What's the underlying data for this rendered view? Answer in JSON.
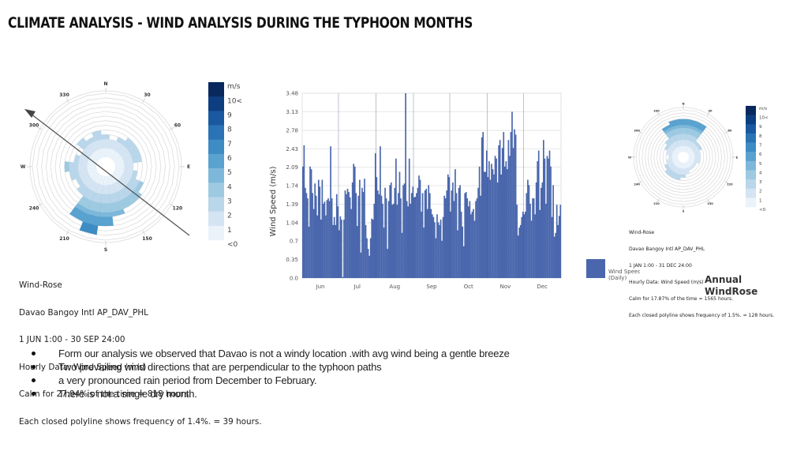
{
  "slide": {
    "title": "CLIMATE ANALYSIS - WIND ANALYSIS DURING  THE TYPHOON MONTHS"
  },
  "colors": {
    "bar": "#4a67ad",
    "rose_scale": [
      "#eaf2fa",
      "#d4e4f2",
      "#b9d6ea",
      "#9ecae1",
      "#7db8da",
      "#5aa2cf",
      "#3d8cc3",
      "#2a73b5",
      "#1a58a0",
      "#0d3f80",
      "#08285e"
    ]
  },
  "windrose_typhoon": {
    "compass_labels": {
      "N": "N",
      "E": "E",
      "S": "S",
      "W": "W"
    },
    "degree_labels": [
      "30",
      "60",
      "120",
      "150",
      "210",
      "240",
      "300",
      "330"
    ],
    "legend_unit": "m/s",
    "legend_labels": [
      "10<",
      "9",
      "8",
      "7",
      "6",
      "5",
      "4",
      "3",
      "2",
      "1",
      "<0"
    ],
    "sector_frequency_rings": [
      5,
      4,
      5,
      6,
      6,
      6,
      4,
      5,
      7,
      8,
      8,
      9,
      11,
      13,
      11,
      6,
      5,
      6,
      7,
      5,
      4,
      6,
      5,
      6
    ],
    "info_lines": [
      "Wind-Rose",
      "Davao Bangoy Intl AP_DAV_PHL",
      "1 JUN 1:00 - 30 SEP 24:00",
      "Hourly Data: Wind Speed (m/s)",
      "Calm for 27.94% of the time = 818 hours.",
      "Each closed polyline shows frequency of 1.4%. = 39 hours."
    ],
    "typhoon_path_arrow": "SE to NW"
  },
  "windrose_annual": {
    "title": "Annual\nWindRose",
    "compass_labels": {
      "N": "N",
      "E": "E",
      "S": "S",
      "W": "W"
    },
    "degree_labels": [
      "30",
      "60",
      "120",
      "150",
      "210",
      "240",
      "300",
      "330"
    ],
    "legend_unit": "m/s",
    "legend_labels": [
      "10<",
      "9",
      "8",
      "7",
      "6",
      "5",
      "4",
      "3",
      "2",
      "1",
      "<0"
    ],
    "sector_frequency_rings": [
      11,
      11,
      11,
      5,
      5,
      4,
      4,
      4,
      3,
      3,
      3,
      4,
      5,
      6,
      6,
      6,
      5,
      4,
      3,
      4,
      5,
      6,
      10,
      11
    ],
    "info_lines": [
      "Wind-Rose",
      "Davao Bangoy Intl AP_DAV_PHL",
      "1 JAN 1:00 - 31 DEC 24:00",
      "Hourly Data: Wind Speed (m/s)",
      "Calm for 17.87% of the time = 1565 hours.",
      "Each closed polyline shows frequency of 1.5%. = 128 hours."
    ]
  },
  "chart_data": {
    "type": "bar",
    "title": "",
    "xlabel": "",
    "ylabel": "Wind Speed (m/s)",
    "ylim": [
      0,
      3.48
    ],
    "yticks": [
      "0.0",
      "0.35",
      "0.7",
      "1.04",
      "1.39",
      "1.74",
      "2.09",
      "2.43",
      "2.78",
      "3.13",
      "3.48"
    ],
    "categories": [
      "Jun",
      "Jul",
      "Aug",
      "Sep",
      "Oct",
      "Nov",
      "Dec"
    ],
    "legend": {
      "label": "Wind Speed\n(Daily)",
      "placement": "right"
    },
    "grid": true,
    "series": [
      {
        "name": "Wind Speed (Daily)",
        "by_month": {
          "Jun": [
            2.1,
            2.5,
            1.7,
            1.6,
            1.5,
            0.97,
            2.1,
            2.05,
            1.6,
            1.3,
            1.78,
            1.55,
            1.18,
            1.85,
            1.72,
            1.1,
            1.85,
            1.4,
            1.44,
            1.18,
            1.47,
            1.5,
            1.45,
            2.48,
            1.5,
            1.0,
            1.15,
            1.0,
            1.58,
            1.35
          ],
          "Jul": [
            0.9,
            1.16,
            1.1,
            0.02,
            1.1,
            1.65,
            1.58,
            1.68,
            1.62,
            1.52,
            1.3,
            1.8,
            2.15,
            2.1,
            1.6,
            0.98,
            1.55,
            1.85,
            0.48,
            1.7,
            1.62,
            1.87,
            1.0,
            0.75,
            0.55,
            0.42,
            0.75,
            1.12,
            1.1,
            1.4,
            2.35
          ],
          "Aug": [
            1.9,
            1.65,
            1.58,
            2.48,
            1.55,
            1.4,
            0.95,
            1.7,
            1.5,
            0.55,
            1.45,
            1.75,
            1.8,
            1.38,
            1.4,
            1.7,
            2.25,
            1.38,
            1.6,
            2.0,
            1.5,
            0.85,
            1.75,
            1.78,
            3.48,
            1.45,
            1.35,
            2.25,
            1.4,
            1.6,
            1.72
          ],
          "Sep": [
            1.52,
            1.53,
            1.6,
            1.7,
            1.93,
            1.85,
            1.25,
            1.6,
            0.95,
            1.65,
            1.68,
            1.3,
            1.75,
            1.6,
            1.3,
            1.2,
            1.15,
            1.05,
            0.75,
            1.2,
            1.05,
            1.0,
            1.1,
            0.7,
            1.15,
            1.55,
            1.5,
            1.65,
            1.95,
            1.9
          ],
          "Oct": [
            1.25,
            1.65,
            1.8,
            1.45,
            2.05,
            1.6,
            0.9,
            1.7,
            1.75,
            1.25,
            0.97,
            0.6,
            1.6,
            1.62,
            1.5,
            1.35,
            1.45,
            1.2,
            1.25,
            1.3,
            1.08,
            1.45,
            1.5,
            1.7,
            2.1,
            1.55,
            2.65,
            2.75,
            2.0,
            2.0,
            2.4
          ],
          "Nov": [
            1.9,
            2.2,
            1.85,
            2.15,
            2.05,
            1.95,
            2.3,
            2.25,
            1.8,
            2.5,
            2.6,
            1.95,
            2.45,
            2.75,
            2.1,
            2.2,
            2.05,
            2.6,
            2.3,
            2.75,
            3.13,
            2.45,
            2.8,
            2.7,
            1.38,
            0.8,
            0.95,
            1.0,
            1.15,
            1.25
          ],
          "Dec": [
            1.2,
            1.25,
            1.6,
            1.85,
            1.75,
            1.4,
            1.08,
            1.5,
            1.5,
            1.2,
            1.8,
            2.2,
            2.4,
            1.28,
            1.7,
            1.8,
            2.6,
            2.25,
            1.4,
            2.3,
            2.25,
            2.4,
            2.1,
            1.15,
            1.75,
            0.78,
            0.85,
            1.38,
            1.0,
            1.17,
            1.38
          ]
        }
      }
    ]
  },
  "bullets": [
    "Form our analysis  we   observed that  Davao   is not a windy  location .with avg wind being  a gentle breeze",
    "Two prevailing wind directions that are perpendicular to the typhoon paths",
    "a very pronounced  rain period from December to February.",
    "There is not a single dry month."
  ]
}
